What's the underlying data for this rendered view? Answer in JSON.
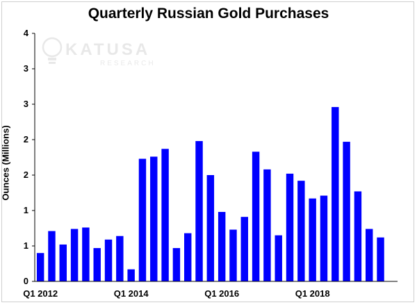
{
  "chart_data": {
    "type": "bar",
    "title": "Quarterly Russian Gold Purchases",
    "xlabel": "",
    "ylabel": "Ounces (Millions)",
    "ylim": [
      0,
      3.5
    ],
    "yticks": [
      0,
      0.5,
      1,
      1.5,
      2,
      2.5,
      3,
      3.5
    ],
    "ytick_labels": [
      "0",
      "1",
      "1",
      "2",
      "2",
      "3",
      "3",
      "4"
    ],
    "categories": [
      "Q1 2012",
      "Q2 2012",
      "Q3 2012",
      "Q4 2012",
      "Q1 2013",
      "Q2 2013",
      "Q3 2013",
      "Q4 2013",
      "Q1 2014",
      "Q2 2014",
      "Q3 2014",
      "Q4 2014",
      "Q1 2015",
      "Q2 2015",
      "Q3 2015",
      "Q4 2015",
      "Q1 2016",
      "Q2 2016",
      "Q3 2016",
      "Q4 2016",
      "Q1 2017",
      "Q2 2017",
      "Q3 2017",
      "Q4 2017",
      "Q1 2018",
      "Q2 2018",
      "Q3 2018",
      "Q4 2018",
      "Q1 2019",
      "Q2 2019",
      "Q3 2019",
      "Q4 2019"
    ],
    "shown_x_labels": [
      "Q1 2012",
      "Q1 2014",
      "Q1 2016",
      "Q1 2018"
    ],
    "values": [
      0.4,
      0.71,
      0.52,
      0.74,
      0.76,
      0.47,
      0.59,
      0.64,
      0.17,
      1.73,
      1.76,
      1.87,
      0.47,
      0.68,
      1.98,
      1.5,
      0.98,
      0.73,
      0.91,
      1.83,
      1.58,
      0.65,
      1.52,
      1.42,
      1.17,
      1.21,
      2.46,
      1.97,
      1.27,
      0.74,
      0.62,
      0
    ],
    "bar_color": "#0000ff",
    "grid": false,
    "legend": "none"
  },
  "watermark": {
    "name": "KATUSA",
    "sub": "RESEARCH"
  }
}
